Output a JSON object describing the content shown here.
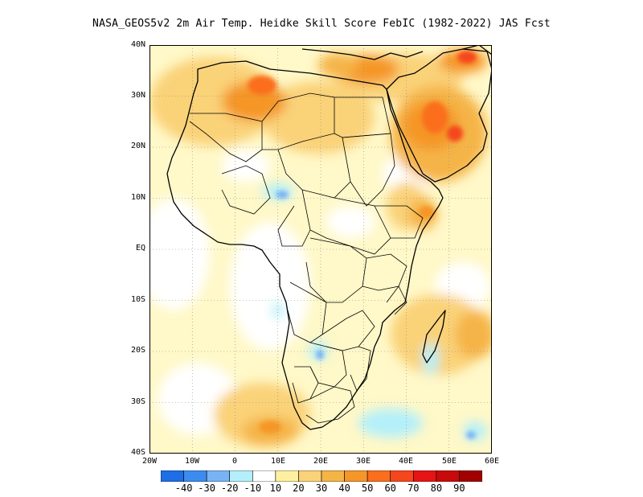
{
  "title": "NASA_GEOS5v2  2m Air Temp. Heidke Skill Score FebIC (1982-2022) JAS Fcst",
  "map": {
    "lat_labels": [
      "40N",
      "30N",
      "20N",
      "10N",
      "EQ",
      "10S",
      "20S",
      "30S",
      "40S"
    ],
    "lon_labels": [
      "20W",
      "10W",
      "0",
      "10E",
      "20E",
      "30E",
      "40E",
      "50E",
      "60E"
    ]
  },
  "colorbar": {
    "colors": [
      "#1e6ee6",
      "#3c8cf0",
      "#78b4f5",
      "#b4f0fa",
      "#ffffff",
      "#fff0a0",
      "#fad278",
      "#f5b446",
      "#f59628",
      "#fa6e1e",
      "#f5461e",
      "#e61414",
      "#c80a0a",
      "#a00000"
    ],
    "labels": [
      "-40",
      "-30",
      "-20",
      "-10",
      "10",
      "20",
      "30",
      "40",
      "50",
      "60",
      "70",
      "80",
      "90"
    ]
  }
}
